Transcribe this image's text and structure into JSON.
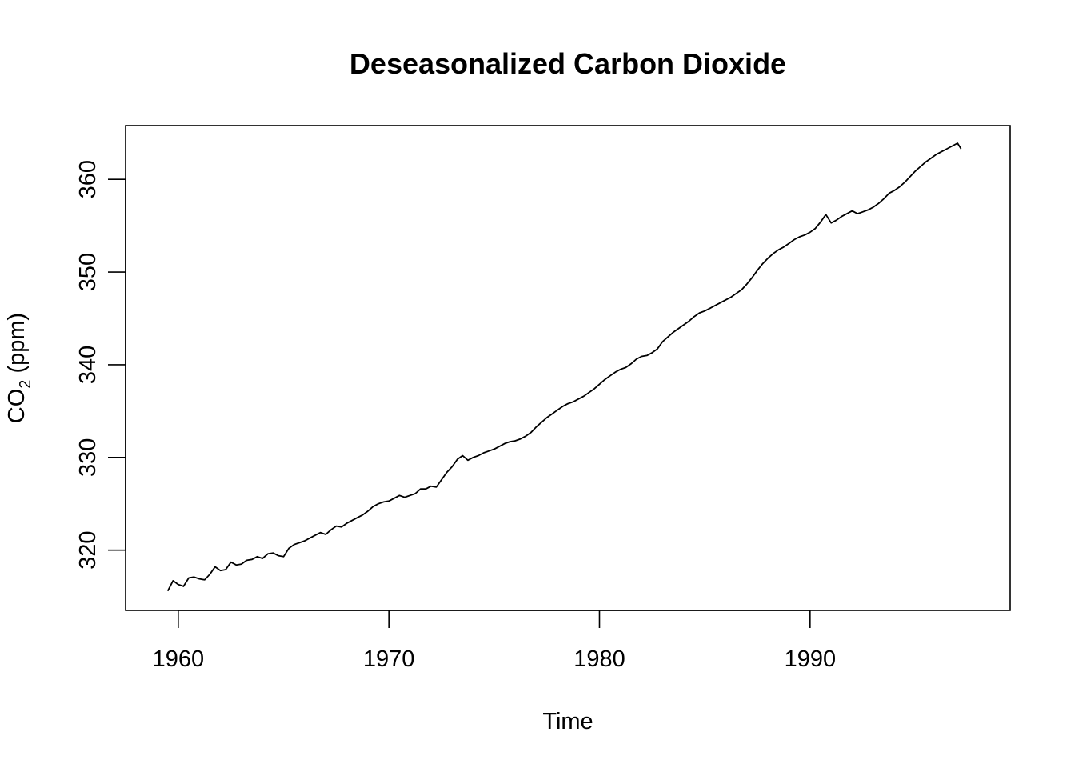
{
  "chart_data": {
    "type": "line",
    "title": "Deseasonalized Carbon Dioxide",
    "xlabel": "Time",
    "ylabel_main": "CO",
    "ylabel_sub": "2",
    "ylabel_rest": " (ppm)",
    "xlim": [
      1957.5,
      1999.5
    ],
    "ylim": [
      313.5,
      365.8
    ],
    "x_ticks": [
      1960,
      1970,
      1980,
      1990
    ],
    "y_ticks": [
      320,
      330,
      340,
      350,
      360
    ],
    "grid": false,
    "series": [
      {
        "color": "#000000",
        "x": [
          1959.5,
          1959.75,
          1960.0,
          1960.25,
          1960.5,
          1960.75,
          1961.0,
          1961.25,
          1961.5,
          1961.75,
          1962.0,
          1962.25,
          1962.5,
          1962.75,
          1963.0,
          1963.25,
          1963.5,
          1963.75,
          1964.0,
          1964.25,
          1964.5,
          1964.75,
          1965.0,
          1965.25,
          1965.5,
          1965.75,
          1966.0,
          1966.25,
          1966.5,
          1966.75,
          1967.0,
          1967.25,
          1967.5,
          1967.75,
          1968.0,
          1968.25,
          1968.5,
          1968.75,
          1969.0,
          1969.25,
          1969.5,
          1969.75,
          1970.0,
          1970.25,
          1970.5,
          1970.75,
          1971.0,
          1971.25,
          1971.5,
          1971.75,
          1972.0,
          1972.25,
          1972.5,
          1972.75,
          1973.0,
          1973.25,
          1973.5,
          1973.75,
          1974.0,
          1974.25,
          1974.5,
          1974.75,
          1975.0,
          1975.25,
          1975.5,
          1975.75,
          1976.0,
          1976.25,
          1976.5,
          1976.75,
          1977.0,
          1977.25,
          1977.5,
          1977.75,
          1978.0,
          1978.25,
          1978.5,
          1978.75,
          1979.0,
          1979.25,
          1979.5,
          1979.75,
          1980.0,
          1980.25,
          1980.5,
          1980.75,
          1981.0,
          1981.25,
          1981.5,
          1981.75,
          1982.0,
          1982.25,
          1982.5,
          1982.75,
          1983.0,
          1983.25,
          1983.5,
          1983.75,
          1984.0,
          1984.25,
          1984.5,
          1984.75,
          1985.0,
          1985.25,
          1985.5,
          1985.75,
          1986.0,
          1986.25,
          1986.5,
          1986.75,
          1987.0,
          1987.25,
          1987.5,
          1987.75,
          1988.0,
          1988.25,
          1988.5,
          1988.75,
          1989.0,
          1989.25,
          1989.5,
          1989.75,
          1990.0,
          1990.25,
          1990.5,
          1990.75,
          1991.0,
          1991.25,
          1991.5,
          1991.75,
          1992.0,
          1992.25,
          1992.5,
          1992.75,
          1993.0,
          1993.25,
          1993.5,
          1993.75,
          1994.0,
          1994.25,
          1994.5,
          1994.75,
          1995.0,
          1995.25,
          1995.5,
          1995.75,
          1996.0,
          1996.25,
          1996.5,
          1996.75,
          1997.0,
          1997.17
        ],
        "y": [
          315.6,
          316.7,
          316.3,
          316.1,
          317.0,
          317.1,
          316.9,
          316.8,
          317.4,
          318.2,
          317.8,
          317.9,
          318.7,
          318.4,
          318.5,
          318.9,
          319.0,
          319.3,
          319.1,
          319.6,
          319.7,
          319.4,
          319.3,
          320.2,
          320.6,
          320.8,
          321.0,
          321.3,
          321.6,
          321.9,
          321.7,
          322.2,
          322.6,
          322.5,
          322.9,
          323.2,
          323.5,
          323.8,
          324.2,
          324.7,
          325.0,
          325.2,
          325.3,
          325.6,
          325.9,
          325.7,
          325.9,
          326.1,
          326.6,
          326.6,
          326.9,
          326.8,
          327.6,
          328.4,
          329.0,
          329.8,
          330.2,
          329.7,
          330.0,
          330.2,
          330.5,
          330.7,
          330.9,
          331.2,
          331.5,
          331.7,
          331.8,
          332.0,
          332.3,
          332.7,
          333.3,
          333.8,
          334.3,
          334.7,
          335.1,
          335.5,
          335.8,
          336.0,
          336.3,
          336.6,
          337.0,
          337.4,
          337.9,
          338.4,
          338.8,
          339.2,
          339.5,
          339.7,
          340.1,
          340.6,
          340.9,
          341.0,
          341.3,
          341.7,
          342.5,
          343.0,
          343.5,
          343.9,
          344.3,
          344.7,
          345.2,
          345.6,
          345.8,
          346.1,
          346.4,
          346.7,
          347.0,
          347.3,
          347.7,
          348.1,
          348.7,
          349.4,
          350.2,
          350.9,
          351.5,
          352.0,
          352.4,
          352.7,
          353.1,
          353.5,
          353.8,
          354.0,
          354.3,
          354.7,
          355.4,
          356.2,
          355.3,
          355.6,
          356.0,
          356.3,
          356.6,
          356.3,
          356.5,
          356.7,
          357.0,
          357.4,
          357.9,
          358.5,
          358.8,
          359.2,
          359.7,
          360.3,
          360.9,
          361.4,
          361.9,
          362.3,
          362.7,
          363.0,
          363.3,
          363.6,
          363.9,
          363.3
        ]
      }
    ]
  }
}
